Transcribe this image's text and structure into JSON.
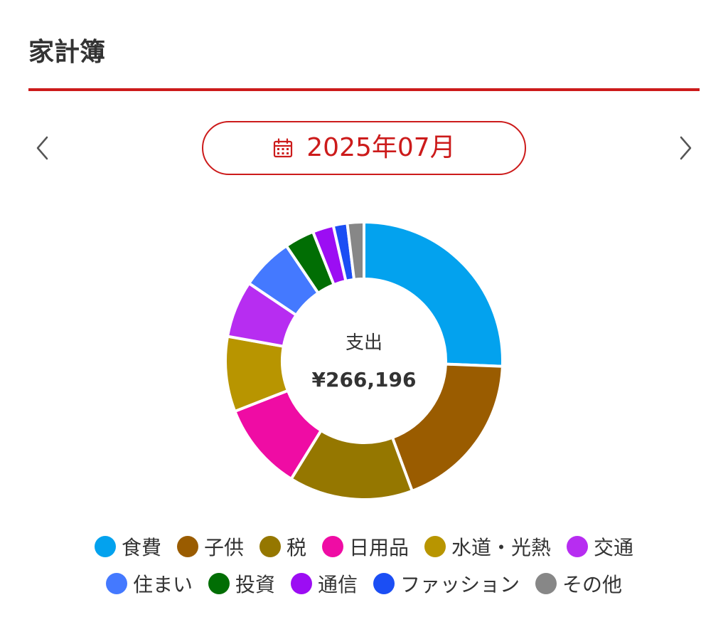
{
  "header": {
    "title": "家計簿"
  },
  "month_nav": {
    "current_month": "2025年07月",
    "prev_icon": "chevron-left-icon",
    "next_icon": "chevron-right-icon",
    "calendar_icon": "calendar-icon"
  },
  "colors": {
    "accent": "#cc1b1b",
    "text": "#333333"
  },
  "chart_data": {
    "type": "pie",
    "donut": true,
    "center_label": "支出",
    "center_value": "¥266,196",
    "slices": [
      {
        "label": "食費",
        "color": "#03a2ee",
        "value": 25.2
      },
      {
        "label": "子供",
        "color": "#9a5c00",
        "value": 18.4
      },
      {
        "label": "税",
        "color": "#957700",
        "value": 14.2
      },
      {
        "label": "日用品",
        "color": "#ef0ca4",
        "value": 10.1
      },
      {
        "label": "水道・光熱",
        "color": "#b89500",
        "value": 8.6
      },
      {
        "label": "交通",
        "color": "#b72df1",
        "value": 6.5
      },
      {
        "label": "住まい",
        "color": "#4479ff",
        "value": 6.0
      },
      {
        "label": "投資",
        "color": "#016e04",
        "value": 3.4
      },
      {
        "label": "通信",
        "color": "#9c0df3",
        "value": 2.4
      },
      {
        "label": "ファッション",
        "color": "#1b4ef4",
        "value": 1.6
      },
      {
        "label": "その他",
        "color": "#878787",
        "value": 1.9
      }
    ]
  },
  "legend": {
    "rows": [
      [
        0,
        1,
        2,
        3,
        4,
        5
      ],
      [
        6,
        7,
        8,
        9,
        10
      ]
    ]
  }
}
